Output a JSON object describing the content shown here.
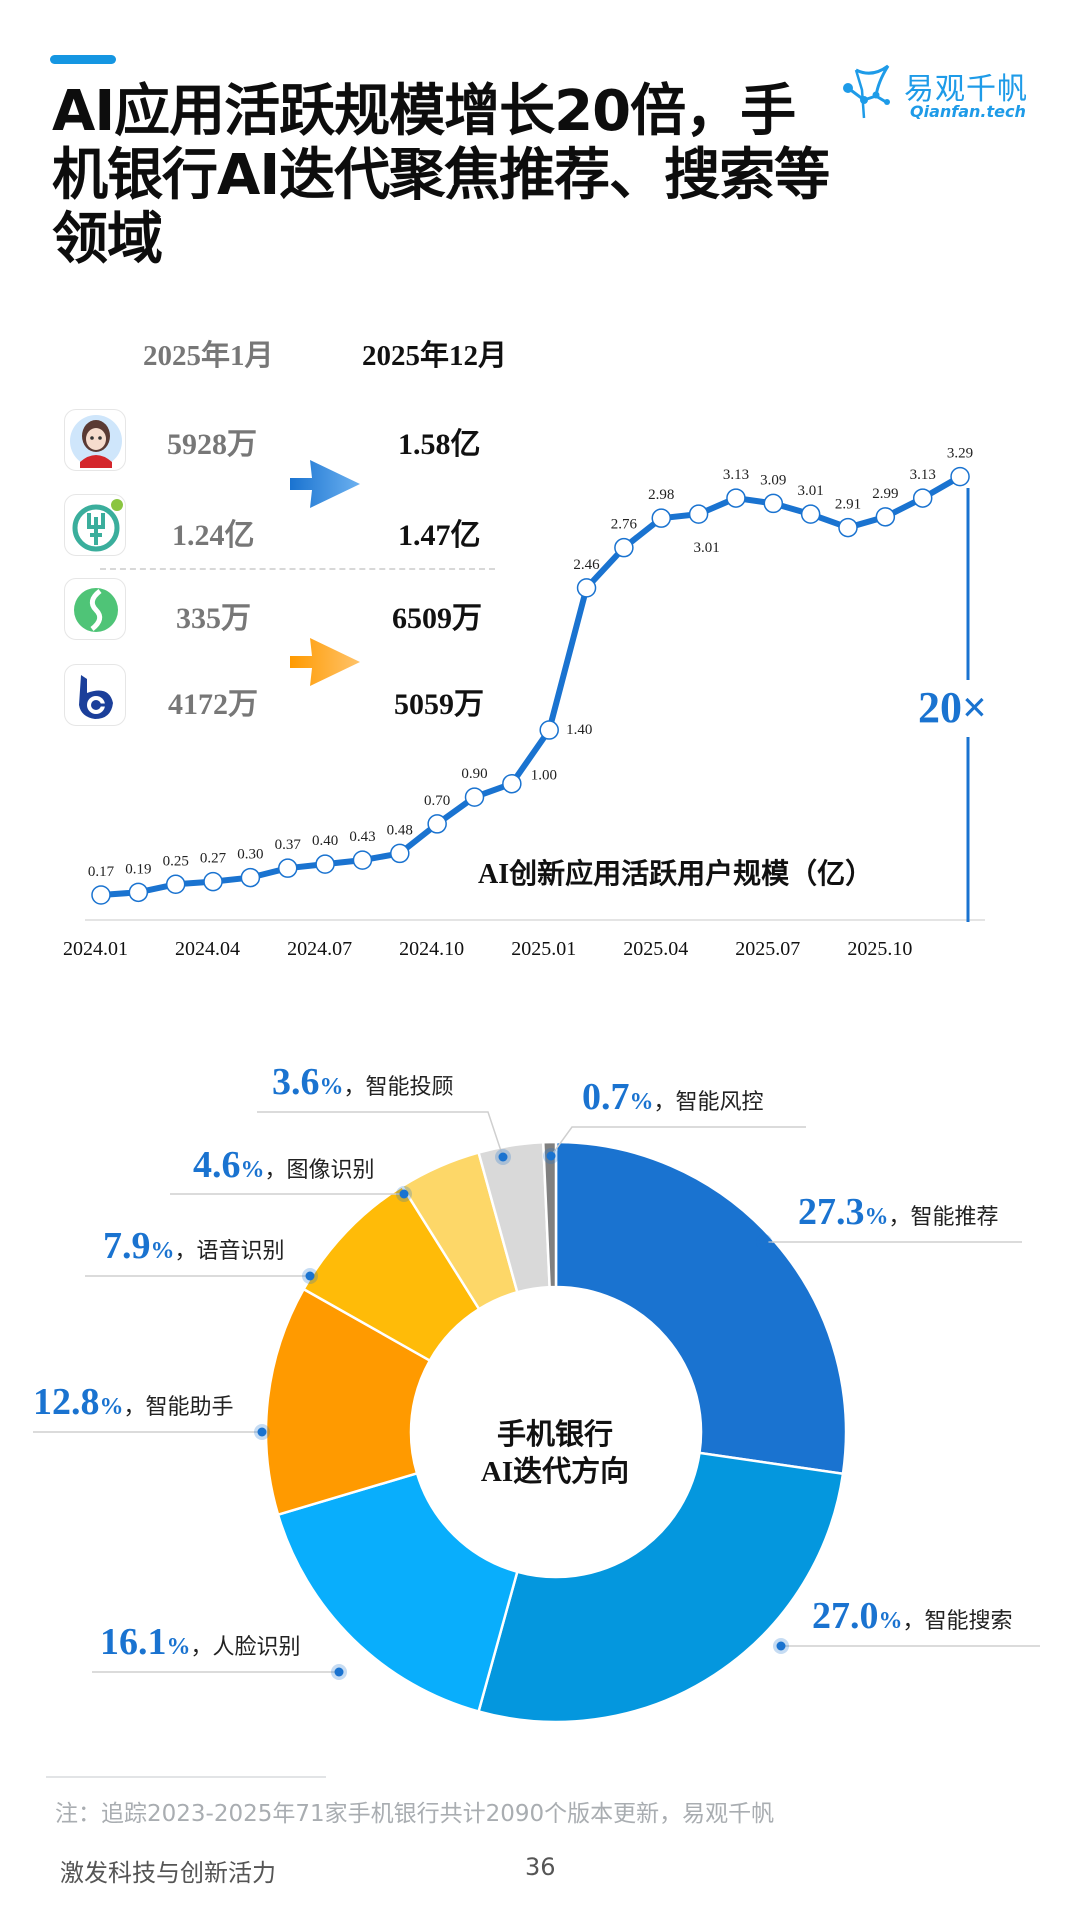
{
  "header": {
    "title": "AI应用活跃规模增长20倍，手机银行AI迭代聚焦推荐、搜索等领域",
    "title_lines": [
      "AI应用活跃规模增长20倍，手",
      "机银行AI迭代聚焦推荐、搜索等",
      "领域"
    ],
    "accent_color": "#1596e2"
  },
  "logo": {
    "name_cn": "易观千帆",
    "name_en": "Qianfan.tech",
    "icon": "sailboat-network-logo-icon",
    "color": "#1e9be8"
  },
  "comparison": {
    "col_jan": "2025年1月",
    "col_dec": "2025年12月",
    "rows": [
      {
        "icon": "avatar-assistant-app-icon",
        "jan": "5928万",
        "dec": "1.58亿"
      },
      {
        "icon": "abc-bank-app-icon",
        "jan": "1.24亿",
        "dec": "1.47亿"
      },
      {
        "icon": "green-s-bank-app-icon",
        "jan": "335万",
        "dec": "6509万"
      },
      {
        "icon": "blue-b-bank-app-icon",
        "jan": "4172万",
        "dec": "5059万"
      }
    ],
    "arrow_top": {
      "icon": "arrow-right-icon",
      "color": "#2f86dc"
    },
    "arrow_bottom": {
      "icon": "arrow-right-icon",
      "color": "#ffa21a"
    }
  },
  "chart_data": [
    {
      "type": "line",
      "title": "AI创新应用活跃用户规模（亿）",
      "xlabel": "",
      "ylabel": "亿",
      "x": [
        "2024.01",
        "2024.02",
        "2024.03",
        "2024.04",
        "2024.05",
        "2024.06",
        "2024.07",
        "2024.08",
        "2024.09",
        "2024.10",
        "2024.11",
        "2024.12",
        "2025.01",
        "2025.02",
        "2025.03",
        "2025.04",
        "2025.05",
        "2025.06",
        "2025.07",
        "2025.08",
        "2025.09",
        "2025.10",
        "2025.11",
        "2025.12"
      ],
      "values": [
        0.17,
        0.19,
        0.25,
        0.27,
        0.3,
        0.37,
        0.4,
        0.43,
        0.48,
        0.7,
        0.9,
        1.0,
        1.4,
        2.46,
        2.76,
        2.98,
        3.01,
        3.13,
        3.09,
        3.01,
        2.91,
        2.99,
        3.13,
        3.29
      ],
      "labels": [
        "0.17",
        "0.19",
        "0.25",
        "0.27",
        "0.30",
        "0.37",
        "0.40",
        "0.43",
        "0.48",
        "0.70",
        "0.90",
        "1.00",
        "1.40",
        "2.46",
        "2.76",
        "2.98",
        "3.01",
        "3.13",
        "3.09",
        "3.01",
        "2.91",
        "2.99",
        "3.13",
        "3.29"
      ],
      "xticks": [
        "2024.01",
        "2024.04",
        "2024.07",
        "2024.10",
        "2025.01",
        "2025.04",
        "2025.07",
        "2025.10"
      ],
      "annotation": "20×",
      "grid": false,
      "color": "#1a73d0"
    },
    {
      "type": "pie",
      "title": "手机银行AI迭代方向",
      "center_text": [
        "手机银行",
        "AI迭代方向"
      ],
      "donut": true,
      "categories": [
        "智能推荐",
        "智能搜索",
        "人脸识别",
        "智能助手",
        "语音识别",
        "图像识别",
        "智能投顾",
        "智能风控"
      ],
      "values": [
        27.3,
        27.0,
        16.1,
        12.8,
        7.9,
        4.6,
        3.6,
        0.7
      ],
      "pct_labels": [
        "27.3",
        "27.0",
        "16.1",
        "12.8",
        "7.9",
        "4.6",
        "3.6",
        "0.7"
      ],
      "colors": [
        "#1a73d0",
        "#0497de",
        "#09aefc",
        "#ff9a00",
        "#ffbb08",
        "#fdd768",
        "#d9d9d9",
        "#808080"
      ],
      "unit": "%"
    }
  ],
  "footer": {
    "note": "注：追踪2023-2025年71家手机银行共计2090个版本更新，易观千帆",
    "section": "激发科技与创新活力",
    "page": "36"
  }
}
